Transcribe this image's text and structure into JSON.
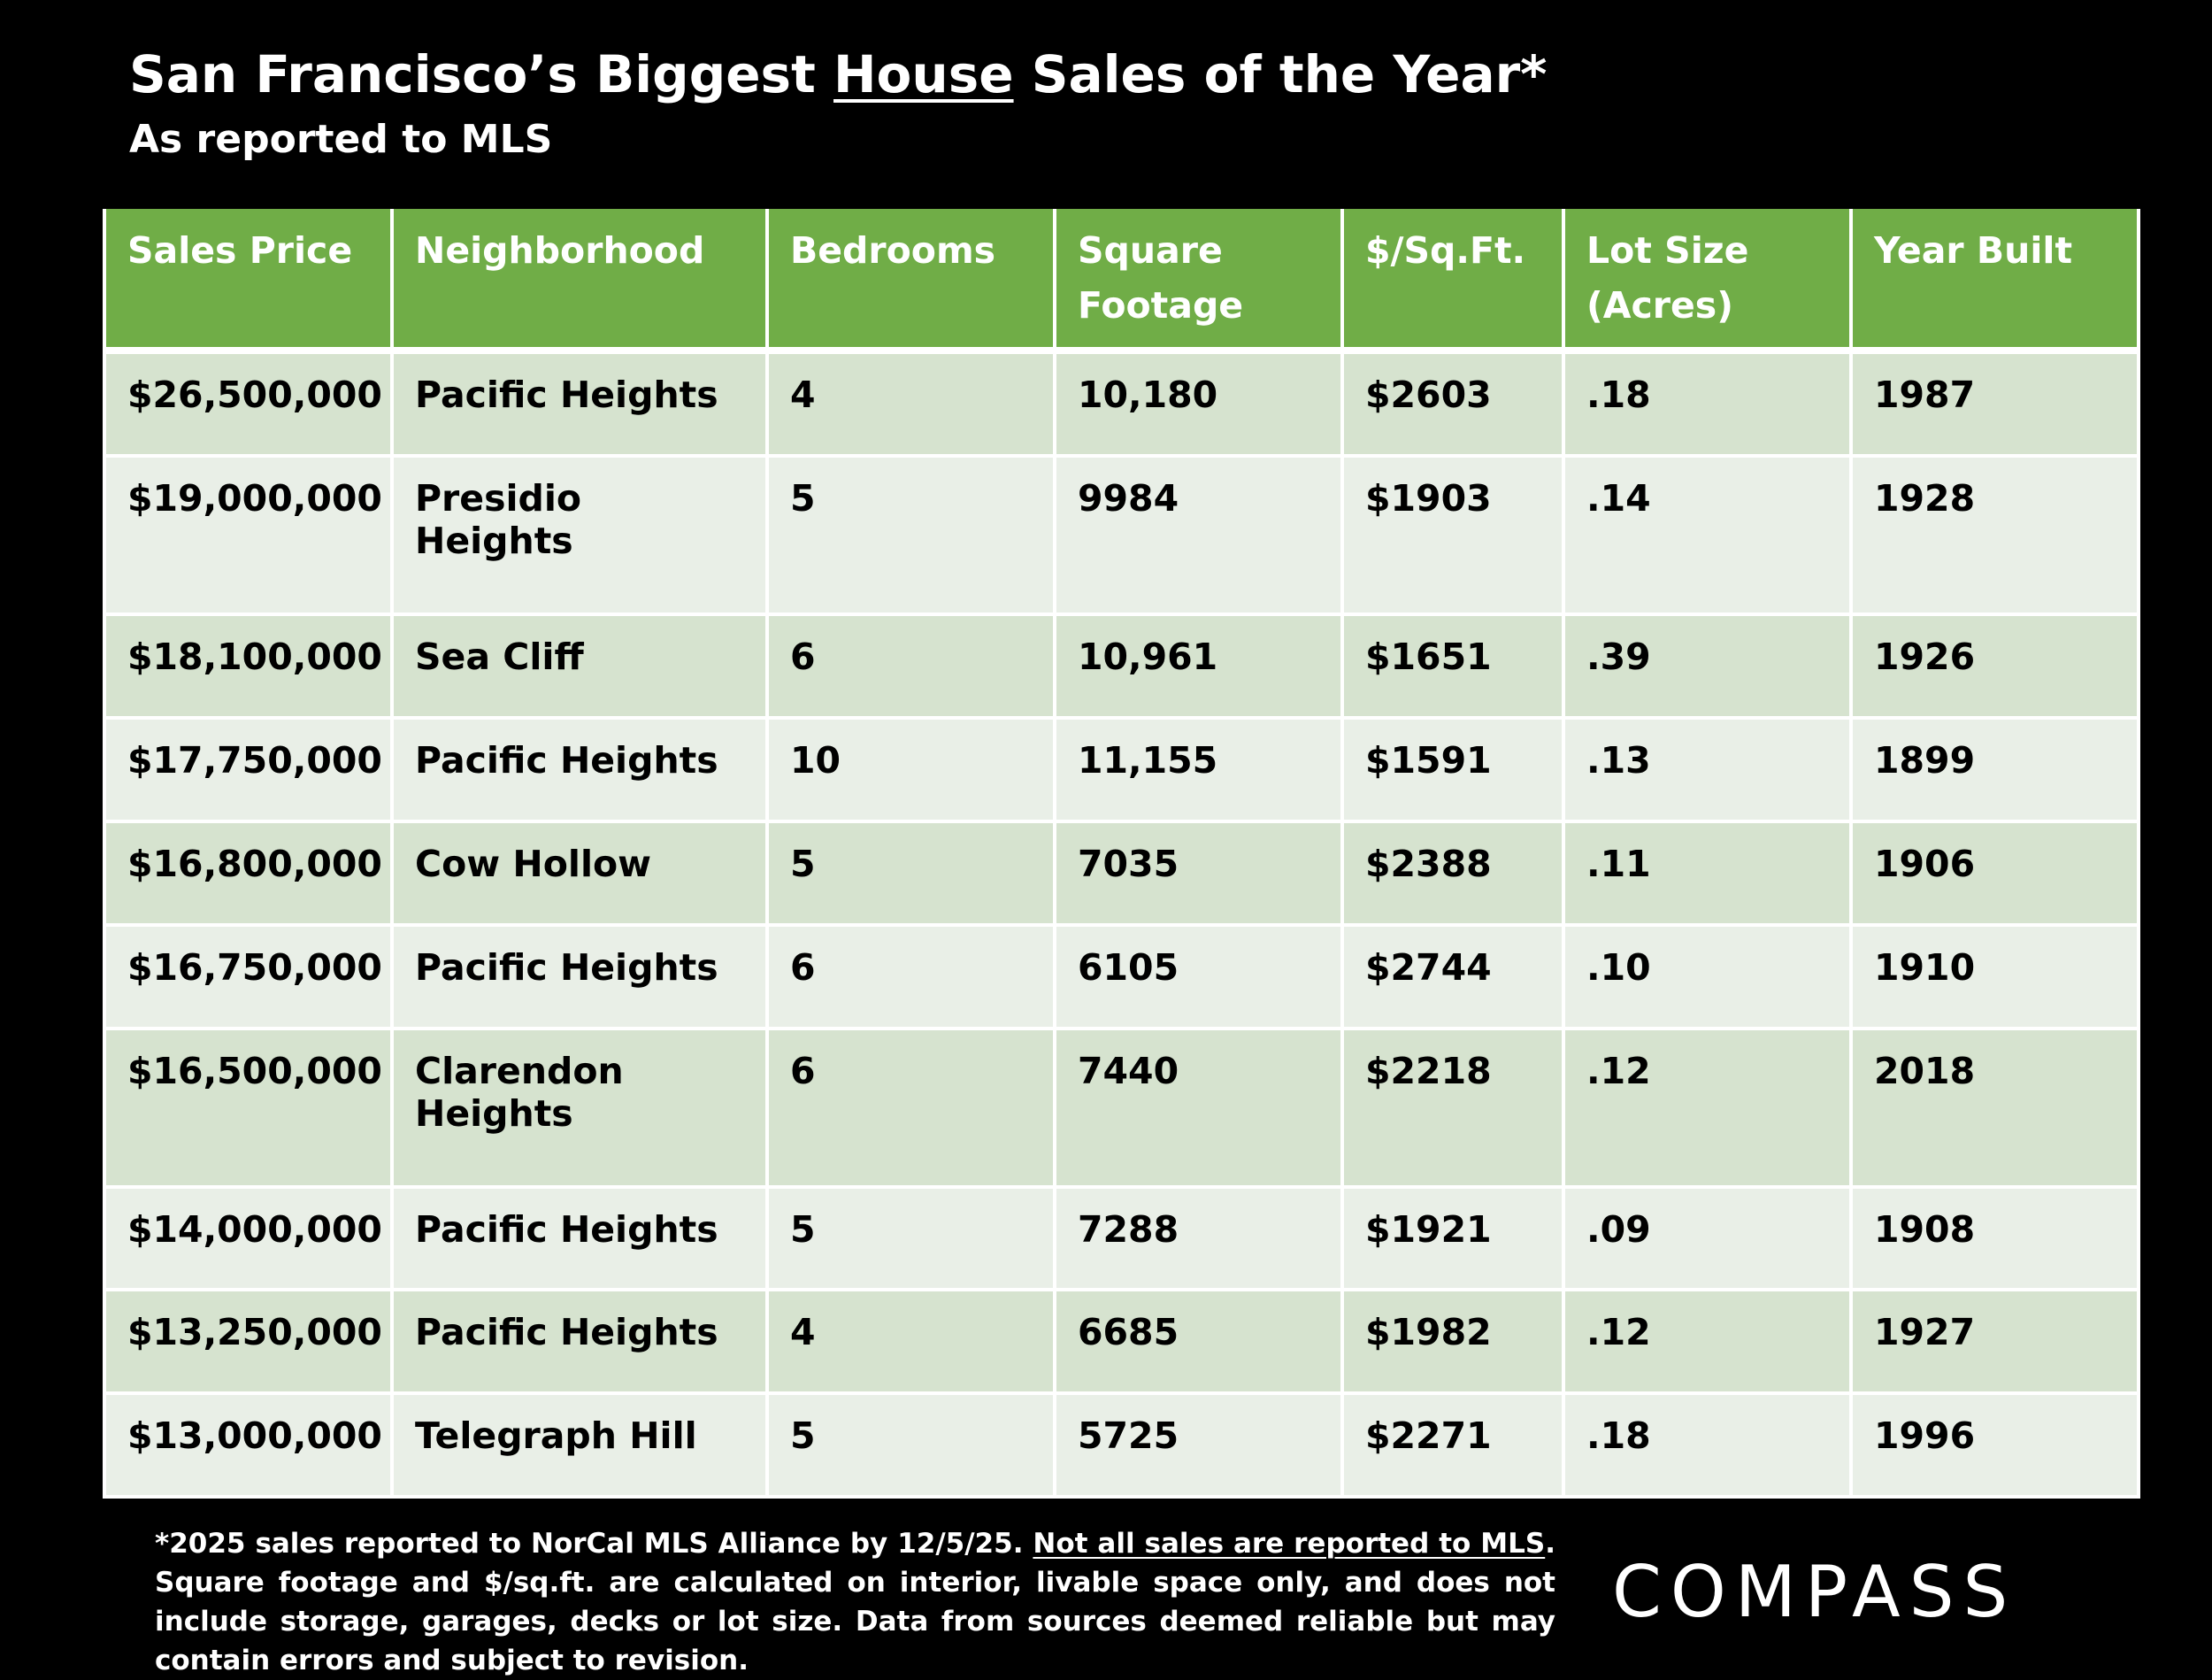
{
  "header": {
    "title": {
      "before": "San Francisco’s Biggest",
      "underlined": "House",
      "after": "Sales of the Year*"
    },
    "subtitle": "As reported to MLS"
  },
  "table": {
    "columns": [
      "Sales Price",
      "Neighborhood",
      "Bedrooms",
      "Square Footage",
      "$/Sq.Ft.",
      "Lot Size (Acres)",
      "Year Built"
    ],
    "rows": [
      [
        "$26,500,000",
        "Pacific Heights",
        "4",
        "10,180",
        "$2603",
        ".18",
        "1987"
      ],
      [
        "$19,000,000",
        "Presidio Heights",
        "5",
        "9984",
        "$1903",
        ".14",
        "1928"
      ],
      [
        "$18,100,000",
        "Sea Cliff",
        "6",
        "10,961",
        "$1651",
        ".39",
        "1926"
      ],
      [
        "$17,750,000",
        "Pacific Heights",
        "10",
        "11,155",
        "$1591",
        ".13",
        "1899"
      ],
      [
        "$16,800,000",
        "Cow Hollow",
        "5",
        "7035",
        "$2388",
        ".11",
        "1906"
      ],
      [
        "$16,750,000",
        "Pacific Heights",
        "6",
        "6105",
        "$2744",
        ".10",
        "1910"
      ],
      [
        "$16,500,000",
        "Clarendon Heights",
        "6",
        "7440",
        "$2218",
        ".12",
        "2018"
      ],
      [
        "$14,000,000",
        "Pacific Heights",
        "5",
        "7288",
        "$1921",
        ".09",
        "1908"
      ],
      [
        "$13,250,000",
        "Pacific Heights",
        "4",
        "6685",
        "$1982",
        ".12",
        "1927"
      ],
      [
        "$13,000,000",
        "Telegraph Hill",
        "5",
        "5725",
        "$2271",
        ".18",
        "1996"
      ]
    ]
  },
  "footnote": {
    "before": "*2025 sales reported to NorCal MLS Alliance by 12/5/25.",
    "underlined": "Not all sales are reported to MLS",
    "after": ". Square footage and $/sq.ft. are calculated on interior, livable space only, and does not include storage, garages, decks or lot size. Data from sources deemed reliable but may contain errors and subject to revision."
  },
  "logo": "COMPASS"
}
